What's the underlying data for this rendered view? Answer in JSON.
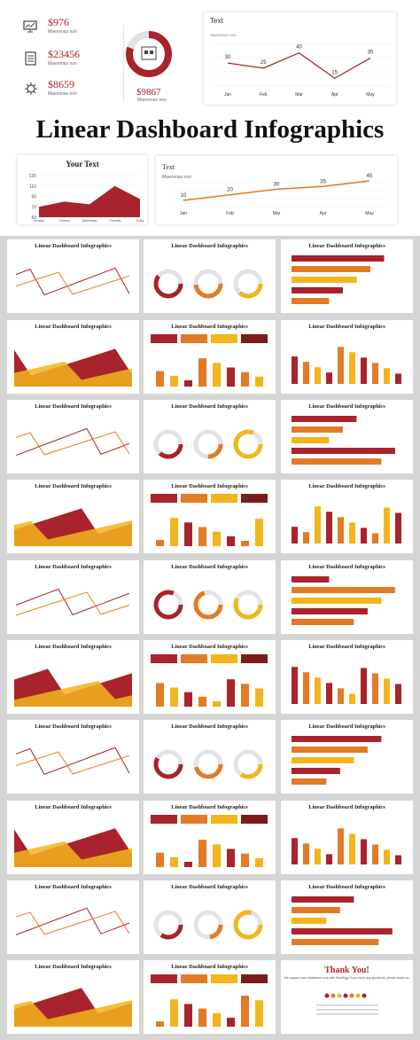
{
  "hero": {
    "stats": [
      {
        "value": "$976",
        "label": "Maecenas non",
        "icon": "monitor-chart-icon"
      },
      {
        "value": "$23456",
        "label": "Maecenas non",
        "icon": "server-icon"
      },
      {
        "value": "$8659",
        "label": "Maecenas non",
        "icon": "virus-icon"
      }
    ],
    "donut": {
      "value": "$9867",
      "label": "Maecenas non",
      "percent": 80,
      "icon": "shop-cart-icon"
    },
    "top_chart": {
      "title": "Text",
      "subtitle": "Maecenas non",
      "chart_data": {
        "type": "line",
        "x": [
          "Jan",
          "Feb",
          "Mar",
          "Apr",
          "May"
        ],
        "values": [
          30,
          25,
          40,
          15,
          35
        ],
        "title": "Text"
      }
    },
    "main_title": "Linear Dashboard Infographics",
    "area_chart": {
      "title": "Your Text",
      "chart_data": {
        "type": "area",
        "x": [
          "Monday",
          "Tuesday",
          "Wednesday",
          "Thursday",
          "Friday"
        ],
        "values": [
          70,
          80,
          75,
          110,
          85
        ],
        "yticks": [
          50,
          70,
          90,
          110,
          130
        ],
        "ylim": [
          50,
          130
        ],
        "title": "Your Text"
      }
    },
    "bottom_chart": {
      "title": "Text",
      "subtitle": "Maecenas non",
      "chart_data": {
        "type": "line",
        "x": [
          "Jan",
          "Feb",
          "Mar",
          "Apr",
          "May"
        ],
        "values": [
          10,
          20,
          30,
          35,
          45
        ],
        "title": "Text"
      }
    }
  },
  "slides": {
    "title": "Linear Dashboard Infographics",
    "thank_you": {
      "title": "Thank You!",
      "line1": "We support your slideshare now with SlideEgg!",
      "line2": "If you have any questions, please reach us."
    }
  },
  "colors": {
    "red": "#a8232b",
    "orange": "#e37b24",
    "yellow": "#f2b51b",
    "grey": "#d5d5d5"
  }
}
